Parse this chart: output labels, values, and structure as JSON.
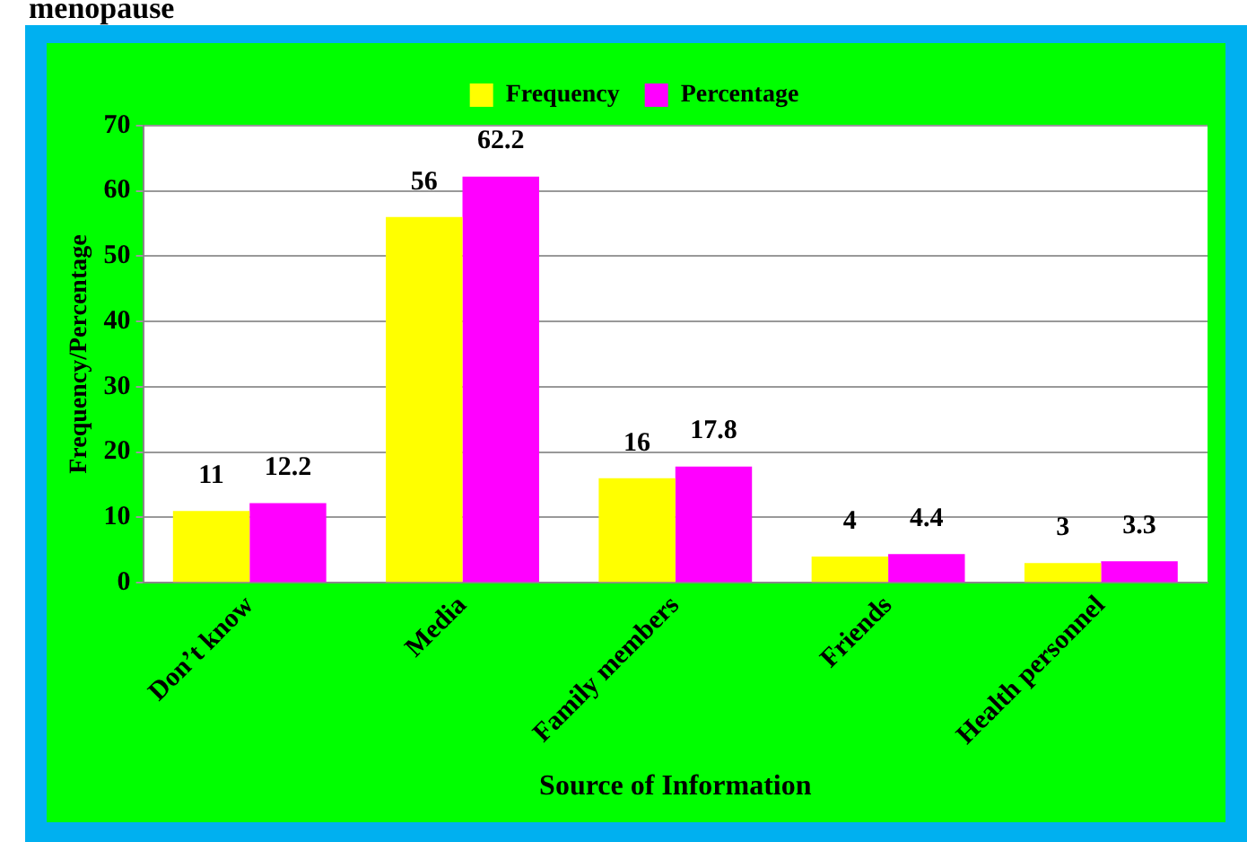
{
  "chart_data": {
    "type": "bar",
    "title": "menopause",
    "xlabel": "Source of Information",
    "ylabel": "Frequency/Percentage",
    "categories": [
      "Don’t know",
      "Media",
      "Family members",
      "Friends",
      "Health personnel"
    ],
    "series": [
      {
        "name": "Frequency",
        "color": "#ffff00",
        "values": [
          11,
          56,
          16,
          4,
          3
        ]
      },
      {
        "name": "Percentage",
        "color": "#ff00ff",
        "values": [
          12.2,
          62.2,
          17.8,
          4.4,
          3.3
        ]
      }
    ],
    "ylim": [
      0,
      70
    ],
    "yticks": [
      0,
      10,
      20,
      30,
      40,
      50,
      60,
      70
    ],
    "grid": "y",
    "legend": "top",
    "data_labels": true
  }
}
